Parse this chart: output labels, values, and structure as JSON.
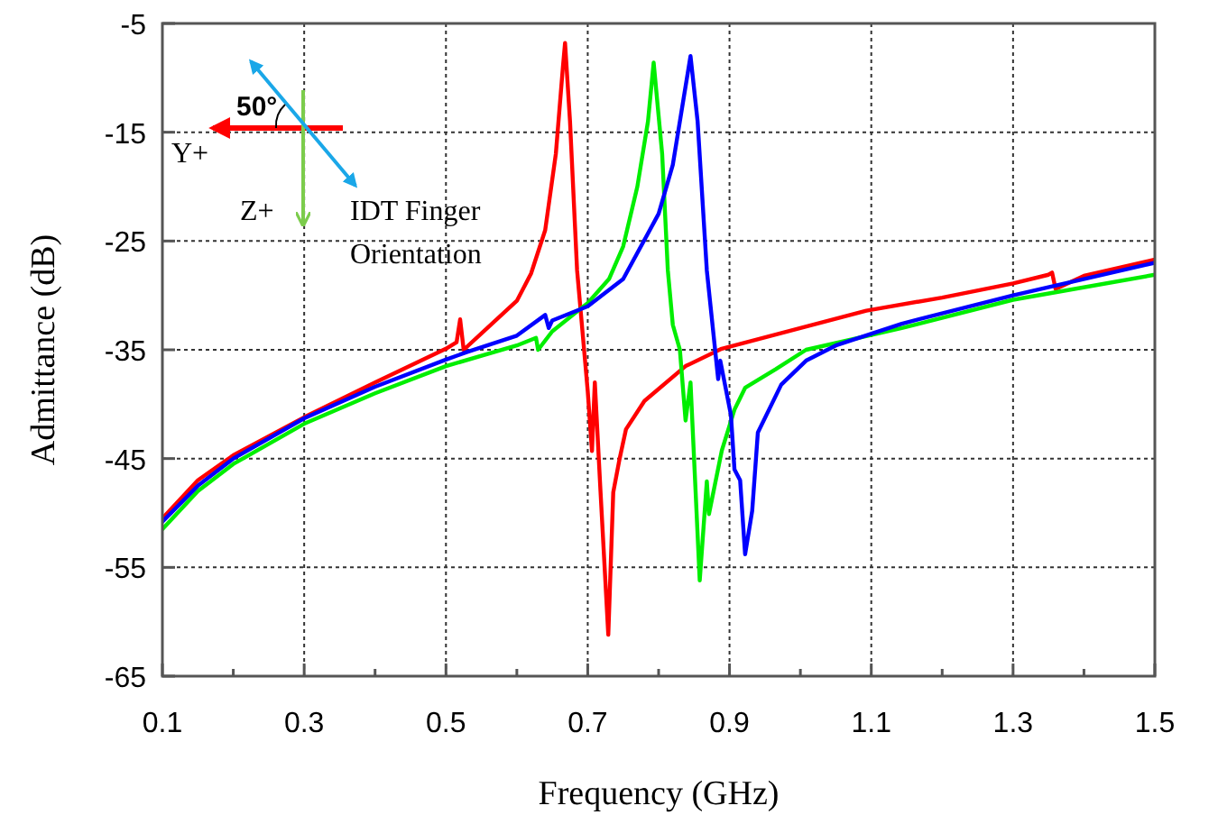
{
  "chart_data": {
    "type": "line",
    "xlabel": "Frequency (GHz)",
    "ylabel": "Admittance (dB)",
    "xlim": [
      0.1,
      1.5
    ],
    "ylim": [
      -65,
      -5
    ],
    "xticks": [
      0.1,
      {
        "value": 0.2,
        "label": null
      },
      0.3,
      {
        "value": 0.4,
        "label": null
      },
      0.5,
      {
        "value": 0.6,
        "label": null
      },
      0.7,
      {
        "value": 0.8,
        "label": null
      },
      0.9,
      {
        "value": 1.0,
        "label": null
      },
      1.1,
      {
        "value": 1.2,
        "label": null
      },
      1.3,
      {
        "value": 1.4,
        "label": null
      },
      1.5
    ],
    "yticks": [
      -5,
      -15,
      -25,
      -35,
      -45,
      -55,
      -65
    ],
    "grid": true,
    "line_style": "solid",
    "marker": "none",
    "annotations": [
      "50°",
      "Y+",
      "Z+",
      "IDT Finger Orientation"
    ],
    "series": [
      {
        "color": "#ff0000",
        "x": [
          0.1,
          0.15,
          0.2,
          0.3,
          0.4,
          0.5,
          0.515,
          0.52,
          0.525,
          0.55,
          0.6,
          0.62,
          0.64,
          0.655,
          0.665,
          0.668,
          0.675,
          0.685,
          0.7,
          0.706,
          0.71,
          0.718,
          0.729,
          0.736,
          0.745,
          0.754,
          0.78,
          0.838,
          0.889,
          1.0,
          1.093,
          1.2,
          1.3,
          1.35,
          1.355,
          1.36,
          1.4,
          1.5
        ],
        "values": [
          -50.5,
          -47,
          -44.7,
          -41.2,
          -38,
          -34.9,
          -34.3,
          -32.2,
          -35,
          -33.5,
          -30.5,
          -28,
          -24,
          -17,
          -9,
          -6.8,
          -14,
          -27.7,
          -38.8,
          -44.3,
          -38,
          -48,
          -61.2,
          -48.1,
          -45,
          -42.3,
          -39.7,
          -36.5,
          -34.9,
          -33,
          -31.4,
          -30.2,
          -28.9,
          -28.1,
          -27.9,
          -29.4,
          -28.2,
          -26.7
        ]
      },
      {
        "color": "#00ee00",
        "x": [
          0.1,
          0.15,
          0.2,
          0.3,
          0.4,
          0.5,
          0.6,
          0.627,
          0.63,
          0.65,
          0.7,
          0.73,
          0.75,
          0.77,
          0.785,
          0.793,
          0.805,
          0.813,
          0.82,
          0.83,
          0.838,
          0.845,
          0.858,
          0.868,
          0.871,
          0.889,
          0.907,
          0.922,
          0.965,
          1.008,
          1.143,
          1.3,
          1.5
        ],
        "values": [
          -51.5,
          -48,
          -45.5,
          -41.8,
          -39,
          -36.5,
          -34.6,
          -33.9,
          -35,
          -33.3,
          -30.7,
          -28.5,
          -25.5,
          -20,
          -14,
          -8.6,
          -17,
          -27.7,
          -32.7,
          -35,
          -41.5,
          -38,
          -56.2,
          -47.1,
          -50.1,
          -44.3,
          -40.5,
          -38.5,
          -36.8,
          -35,
          -33,
          -30.4,
          -28.1
        ]
      },
      {
        "color": "#0000ff",
        "x": [
          0.1,
          0.15,
          0.2,
          0.3,
          0.4,
          0.5,
          0.53,
          0.6,
          0.64,
          0.645,
          0.65,
          0.7,
          0.75,
          0.8,
          0.82,
          0.835,
          0.845,
          0.855,
          0.868,
          0.884,
          0.887,
          0.902,
          0.907,
          0.915,
          0.922,
          0.932,
          0.94,
          0.973,
          1.008,
          1.05,
          1.143,
          1.3,
          1.5
        ],
        "values": [
          -50.8,
          -47.5,
          -45,
          -41.3,
          -38.4,
          -35.9,
          -35.2,
          -33.7,
          -31.8,
          -33,
          -32.3,
          -31,
          -28.5,
          -22.5,
          -18,
          -12,
          -8,
          -14,
          -27.7,
          -37.7,
          -36,
          -41,
          -46,
          -47,
          -53.8,
          -49.8,
          -42.6,
          -38.2,
          -36,
          -34.6,
          -32.6,
          -30,
          -27
        ]
      }
    ]
  }
}
